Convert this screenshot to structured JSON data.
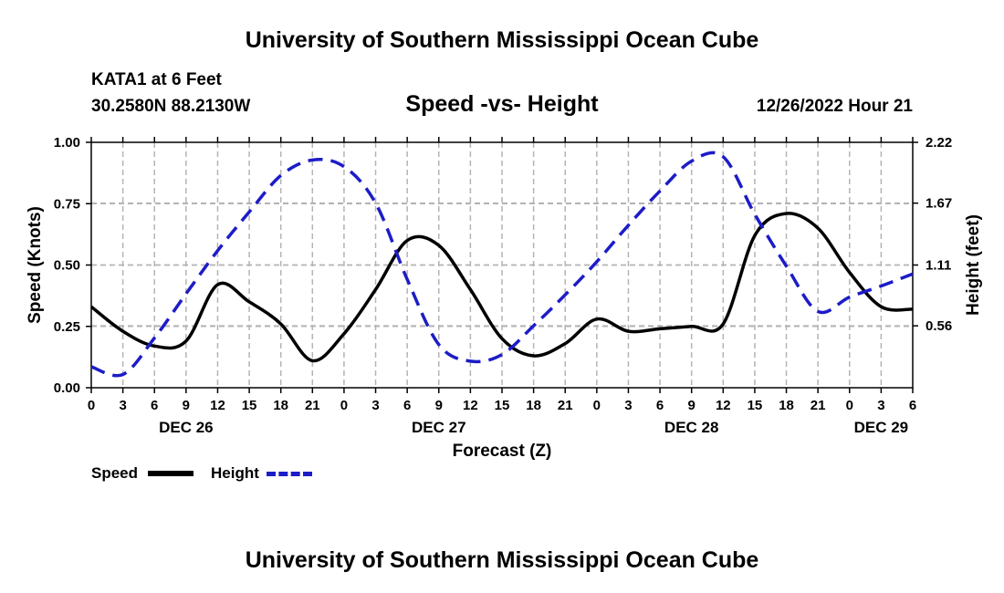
{
  "header": {
    "title": "University of Southern Mississippi Ocean Cube",
    "station": "KATA1 at 6 Feet",
    "coords": "30.2580N  88.2130W",
    "subtitle": "Speed -vs- Height",
    "datetime": "12/26/2022 Hour 21"
  },
  "footer": {
    "title": "University of Southern Mississippi Ocean Cube"
  },
  "legend": {
    "speed_label": "Speed",
    "height_label": "Height"
  },
  "colors": {
    "speed": "#000000",
    "height": "#1c1cc8",
    "grid": "#b4b4b4"
  },
  "chart_data": {
    "type": "line",
    "x_unit": "hours since Dec 26 00Z",
    "xlim": [
      0,
      78
    ],
    "x_tick_step": 3,
    "x_tick_labels": [
      "0",
      "3",
      "6",
      "9",
      "12",
      "15",
      "18",
      "21",
      "0",
      "3",
      "6",
      "9",
      "12",
      "15",
      "18",
      "21",
      "0",
      "3",
      "6",
      "9",
      "12",
      "15",
      "18",
      "21",
      "0",
      "3",
      "6"
    ],
    "date_labels": [
      {
        "x": 9,
        "label": "DEC 26"
      },
      {
        "x": 33,
        "label": "DEC 27"
      },
      {
        "x": 57,
        "label": "DEC 28"
      },
      {
        "x": 75,
        "label": "DEC 29"
      }
    ],
    "xlabel": "Forecast (Z)",
    "ylabel_left": "Speed (Knots)",
    "ylabel_right": "Height (feet)",
    "ylim_left": [
      0,
      1
    ],
    "left_ticks": [
      0,
      0.25,
      0.5,
      0.75,
      1.0
    ],
    "left_tick_labels": [
      "0.00",
      "0.25",
      "0.50",
      "0.75",
      "1.00"
    ],
    "ylim_right": [
      0,
      2.22
    ],
    "right_ticks": [
      0.56,
      1.11,
      1.67,
      2.22
    ],
    "right_tick_labels": [
      "0.56",
      "1.11",
      "1.67",
      "2.22"
    ],
    "series": [
      {
        "name": "Speed",
        "axis": "left",
        "style": "solid",
        "x": [
          0,
          3,
          6,
          9,
          12,
          15,
          18,
          21,
          24,
          27,
          30,
          33,
          36,
          39,
          42,
          45,
          48,
          51,
          54,
          57,
          60,
          63,
          66,
          69,
          72,
          75,
          78
        ],
        "values": [
          0.33,
          0.23,
          0.17,
          0.19,
          0.42,
          0.35,
          0.26,
          0.11,
          0.22,
          0.4,
          0.6,
          0.58,
          0.4,
          0.2,
          0.13,
          0.18,
          0.28,
          0.23,
          0.24,
          0.25,
          0.26,
          0.62,
          0.71,
          0.65,
          0.47,
          0.33,
          0.32
        ]
      },
      {
        "name": "Height",
        "axis": "right",
        "style": "dashed",
        "x": [
          0,
          3,
          6,
          9,
          12,
          15,
          18,
          21,
          24,
          27,
          30,
          33,
          36,
          39,
          42,
          45,
          48,
          51,
          54,
          57,
          60,
          63,
          66,
          69,
          72,
          75,
          78
        ],
        "values": [
          0.19,
          0.12,
          0.45,
          0.85,
          1.24,
          1.59,
          1.92,
          2.06,
          2.0,
          1.67,
          0.98,
          0.39,
          0.24,
          0.3,
          0.56,
          0.84,
          1.14,
          1.47,
          1.78,
          2.05,
          2.09,
          1.57,
          1.1,
          0.69,
          0.82,
          0.92,
          1.03
        ]
      }
    ]
  }
}
